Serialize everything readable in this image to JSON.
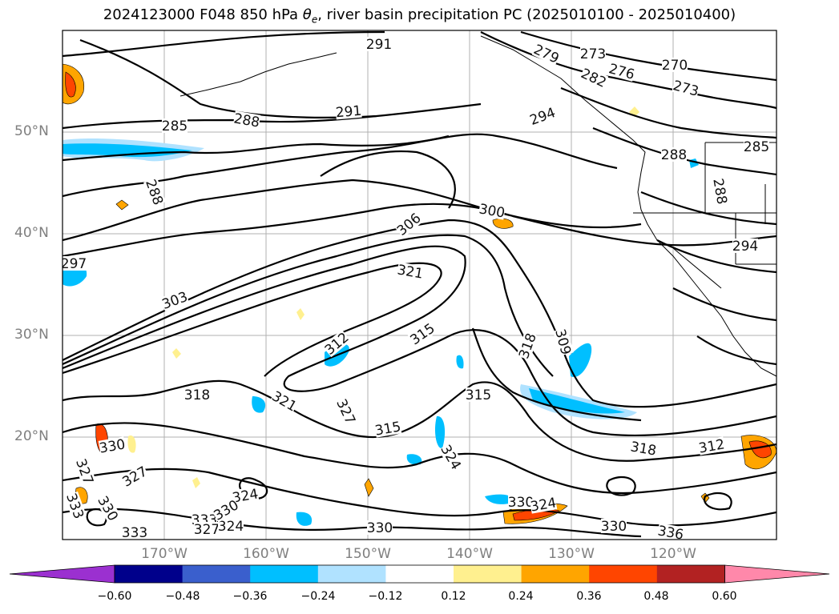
{
  "title": {
    "prefix": "2024123000 F048 850 hPa ",
    "var_main": "θ",
    "var_sub": "e",
    "suffix": ", river basin precipitation PC (2025010100 - 2025010400)"
  },
  "axes": {
    "lat_labels": [
      "50°N",
      "40°N",
      "30°N",
      "20°N"
    ],
    "lon_labels": [
      "170°W",
      "160°W",
      "150°W",
      "140°W",
      "130°W",
      "120°W"
    ]
  },
  "colorbar": {
    "levels": [
      "−0.60",
      "−0.48",
      "−0.36",
      "−0.24",
      "−0.12",
      "0.12",
      "0.24",
      "0.36",
      "0.48",
      "0.60"
    ],
    "colors": [
      "#9b30d0",
      "#00008b",
      "#3a5fcd",
      "#00bfff",
      "#b0e2ff",
      "#ffffff",
      "#fff08f",
      "#ffa500",
      "#ff4500",
      "#b22222",
      "#ff88aa"
    ]
  },
  "contour_labels": [
    {
      "text": "291"
    },
    {
      "text": "279"
    },
    {
      "text": "273"
    },
    {
      "text": "276"
    },
    {
      "text": "270"
    },
    {
      "text": "282"
    },
    {
      "text": "273"
    },
    {
      "text": "291"
    },
    {
      "text": "288"
    },
    {
      "text": "285"
    },
    {
      "text": "294"
    },
    {
      "text": "288"
    },
    {
      "text": "285"
    },
    {
      "text": "288"
    },
    {
      "text": "288"
    },
    {
      "text": "306"
    },
    {
      "text": "300"
    },
    {
      "text": "294"
    },
    {
      "text": "297"
    },
    {
      "text": "321"
    },
    {
      "text": "303"
    },
    {
      "text": "315"
    },
    {
      "text": "312"
    },
    {
      "text": "318"
    },
    {
      "text": "309"
    },
    {
      "text": "318"
    },
    {
      "text": "315"
    },
    {
      "text": "321"
    },
    {
      "text": "327"
    },
    {
      "text": "315"
    },
    {
      "text": "324"
    },
    {
      "text": "318"
    },
    {
      "text": "312"
    },
    {
      "text": "330"
    },
    {
      "text": "327"
    },
    {
      "text": "327"
    },
    {
      "text": "333"
    },
    {
      "text": "330"
    },
    {
      "text": "324"
    },
    {
      "text": "330"
    },
    {
      "text": "333"
    },
    {
      "text": "327"
    },
    {
      "text": "324"
    },
    {
      "text": "333"
    },
    {
      "text": "330"
    },
    {
      "text": "330"
    },
    {
      "text": "324"
    },
    {
      "text": "330"
    },
    {
      "text": "336"
    }
  ]
}
